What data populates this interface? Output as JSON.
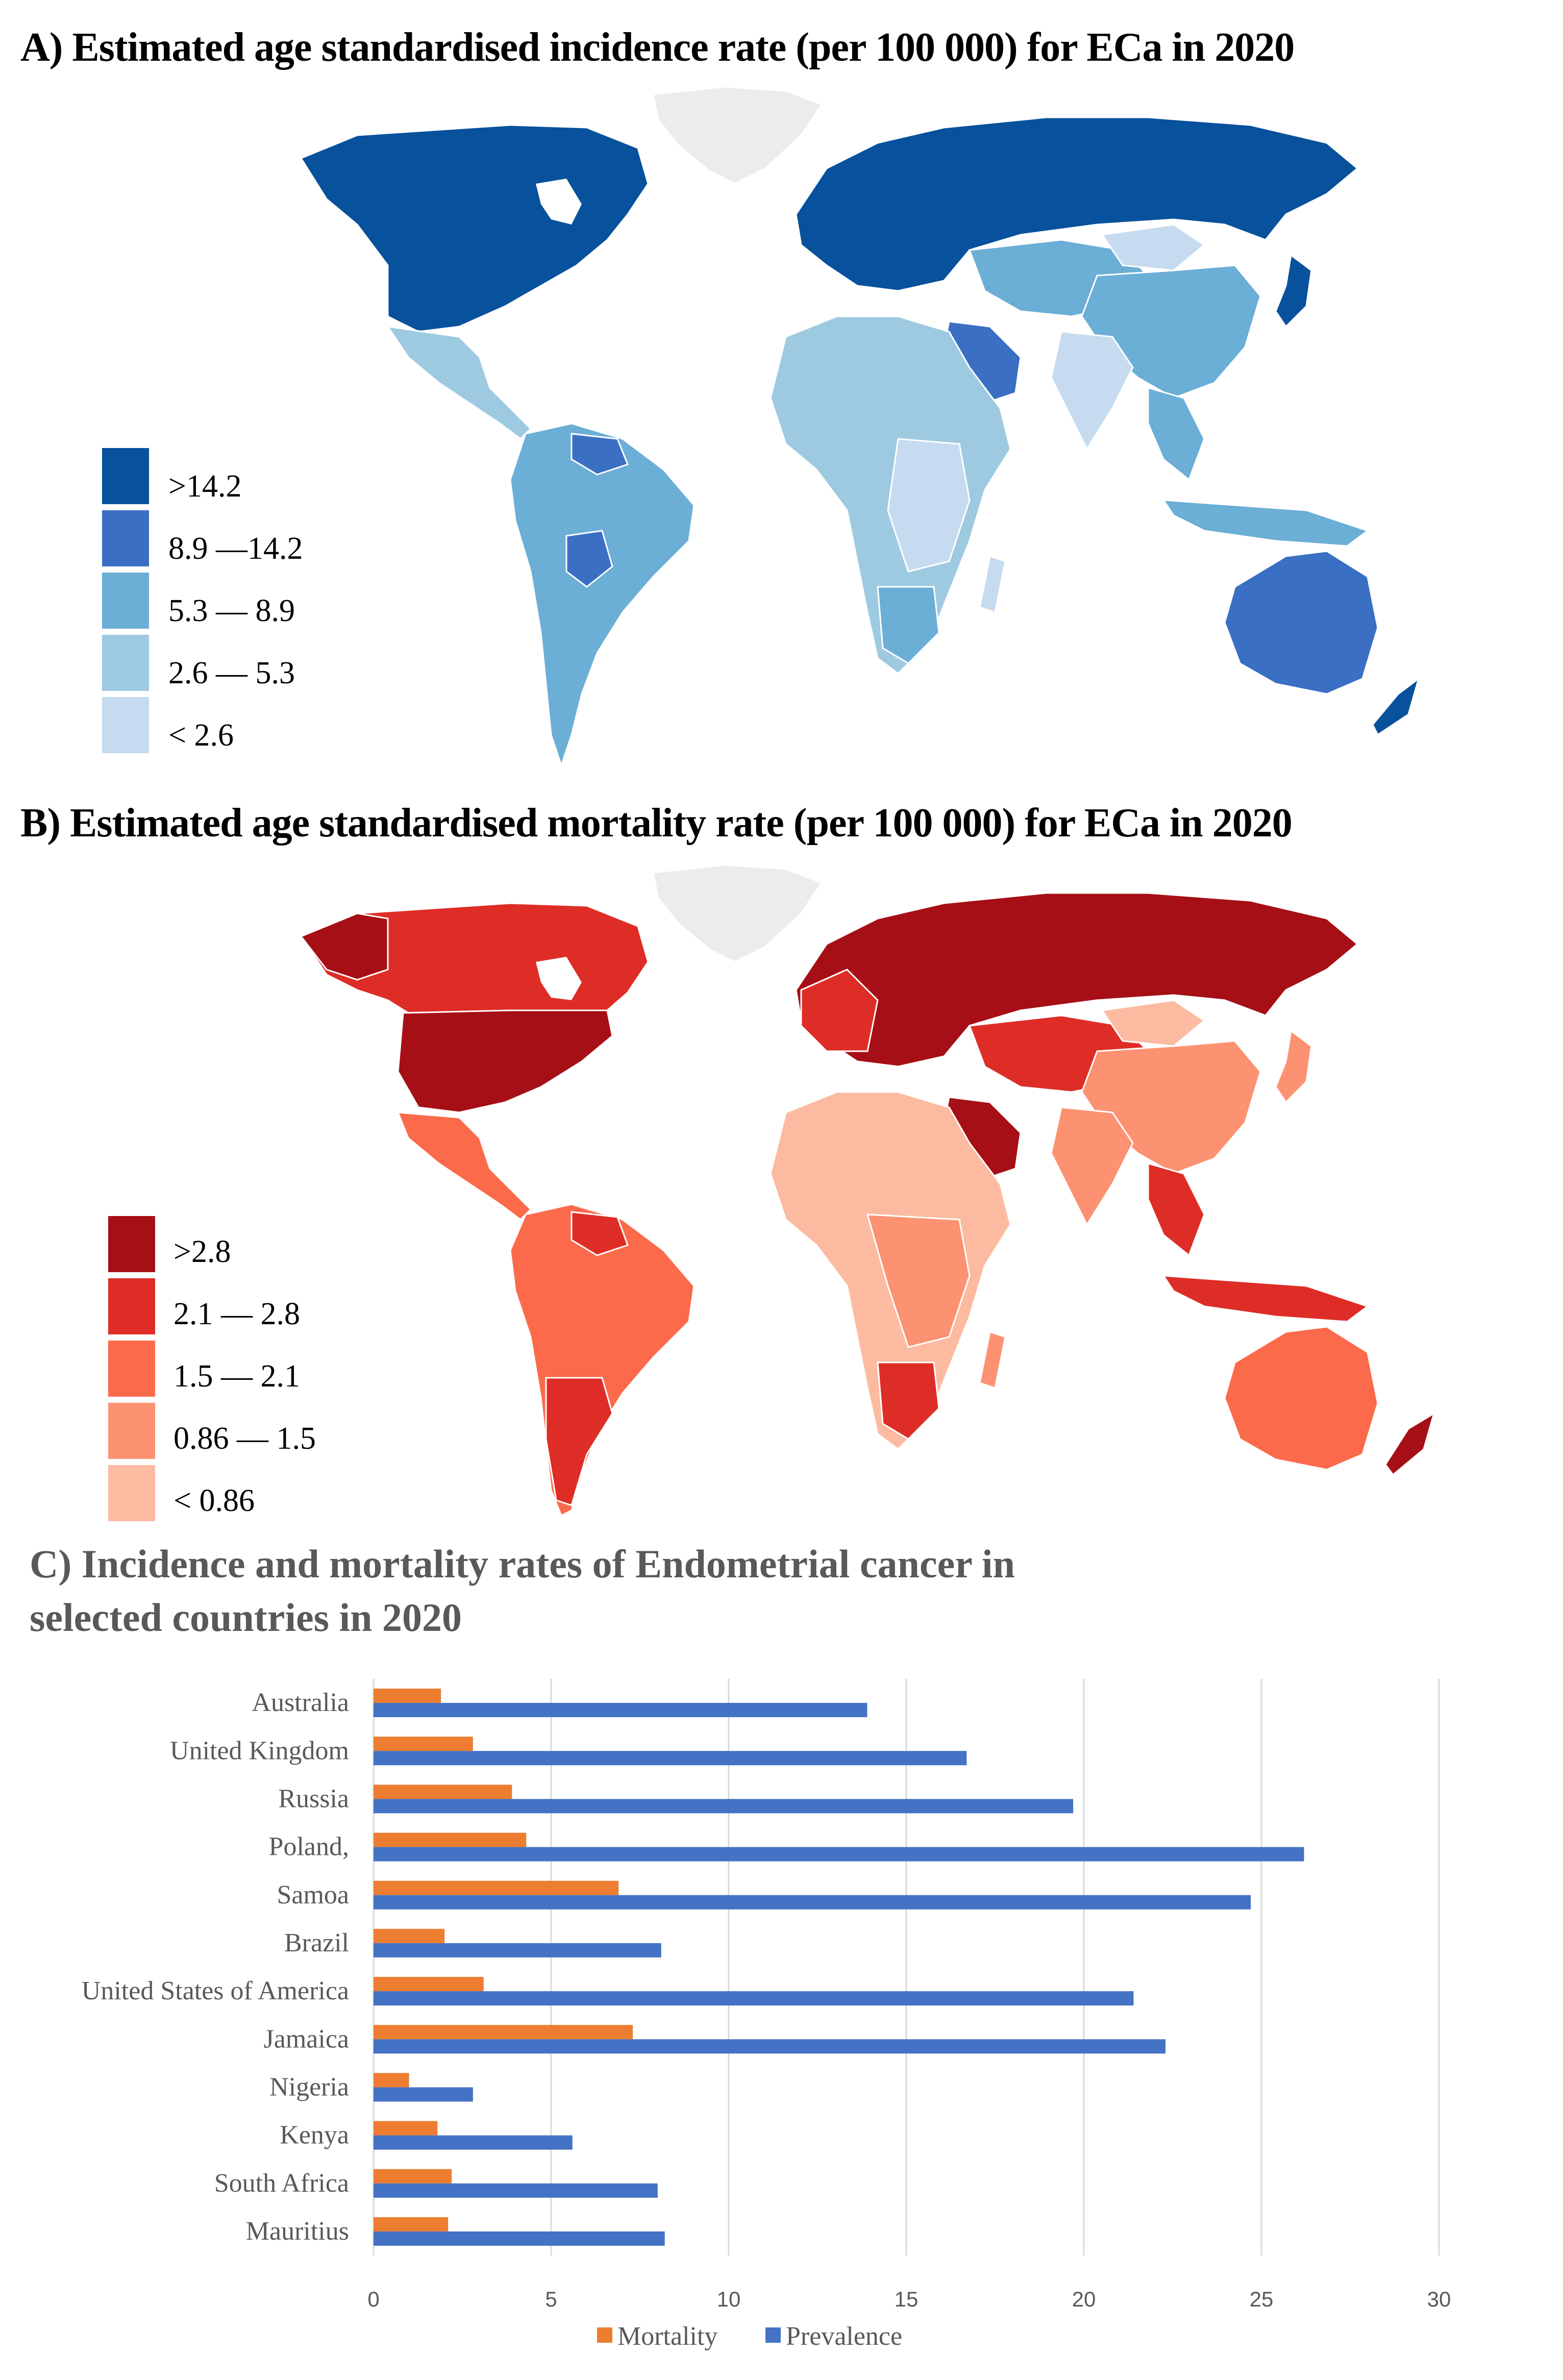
{
  "panel_a": {
    "title": "A) Estimated  age standardised  incidence rate (per 100 000) for  ECa in 2020",
    "legend": [
      {
        "label": ">14.2",
        "color": "#08519c"
      },
      {
        "label": "8.9 —14.2",
        "color": "#3a6fc4"
      },
      {
        "label": "5.3 — 8.9",
        "color": "#6baed6"
      },
      {
        "label": "2.6 — 5.3",
        "color": "#9ecae1"
      },
      {
        "label": "< 2.6",
        "color": "#c6dbef"
      }
    ]
  },
  "panel_b": {
    "title": "B) Estimated  age standardised  mortality rate (per 100 000) for  ECa in 2020",
    "legend": [
      {
        "label": ">2.8",
        "color": "#a50f15"
      },
      {
        "label": "2.1 —  2.8",
        "color": "#de2d26"
      },
      {
        "label": "1.5 — 2.1",
        "color": "#fb6a4a"
      },
      {
        "label": "0.86 — 1.5",
        "color": "#fc9272"
      },
      {
        "label": "< 0.86",
        "color": "#fcbba1"
      }
    ]
  },
  "chart_data": {
    "type": "bar",
    "orientation": "horizontal",
    "title": "C) Incidence and mortality rates of Endometrial cancer in selected countries  in 2020",
    "title_line1": "C) Incidence and mortality rates of Endometrial cancer in",
    "title_line2": "selected countries  in 2020",
    "categories": [
      "Australia",
      "United Kingdom",
      "Russia",
      "Poland,",
      "Samoa",
      "Brazil",
      "United States of America",
      "Jamaica",
      "Nigeria",
      "Kenya",
      "South Africa",
      "Mauritius"
    ],
    "series": [
      {
        "name": "Mortality",
        "color": "#ed7d31",
        "values": [
          1.9,
          2.8,
          3.9,
          4.3,
          6.9,
          2.0,
          3.1,
          7.3,
          1.0,
          1.8,
          2.2,
          2.1
        ]
      },
      {
        "name": "Prevalence",
        "color": "#4472c4",
        "values": [
          13.9,
          16.7,
          19.7,
          26.2,
          24.7,
          8.1,
          21.4,
          22.3,
          2.8,
          5.6,
          8.0,
          8.2
        ]
      }
    ],
    "xlim": [
      0,
      30
    ],
    "xticks": [
      0,
      5,
      10,
      15,
      20,
      25,
      30
    ],
    "grid": true,
    "legend_position": "bottom"
  }
}
